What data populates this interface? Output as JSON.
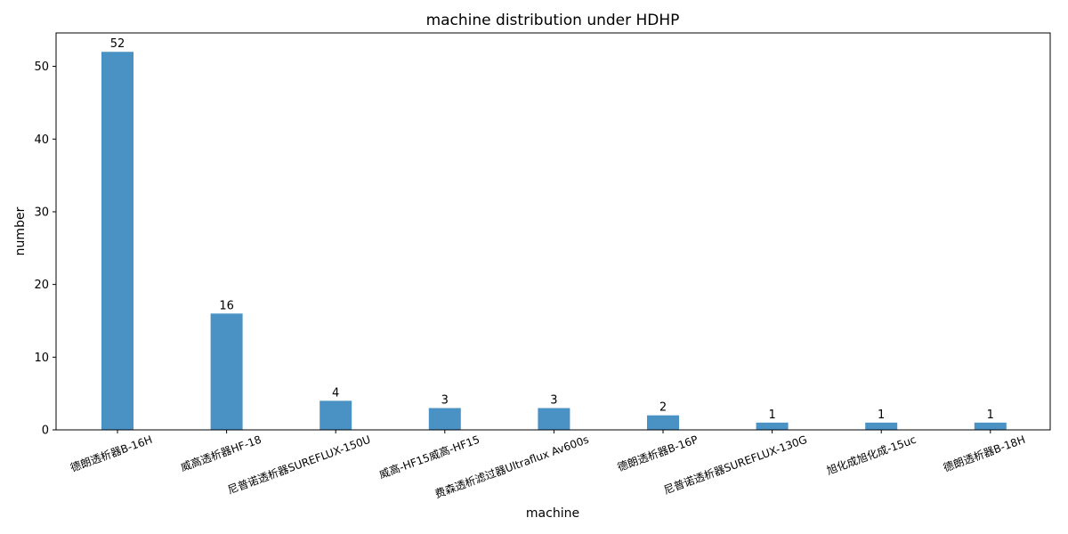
{
  "chart_data": {
    "type": "bar",
    "title": "machine distribution under HDHP",
    "xlabel": "machine",
    "ylabel": "number",
    "categories": [
      "德朗透析器B-16H",
      "威高透析器HF-18",
      "尼普诺透析器SUREFLUX-150U",
      "威高-HF15威高-HF15",
      "费森透析滤过器Ultraflux Av600s",
      "德朗透析器B-16P",
      "尼普诺透析器SUREFLUX-130G",
      "旭化成旭化成-15uc",
      "德朗透析器B-18H"
    ],
    "values": [
      52,
      16,
      4,
      3,
      3,
      2,
      1,
      1,
      1
    ],
    "ylim": [
      0,
      54.6
    ],
    "yticks": [
      0,
      10,
      20,
      30,
      40,
      50
    ],
    "bar_color": "#4a92c4",
    "grid": false,
    "legend": "none"
  }
}
